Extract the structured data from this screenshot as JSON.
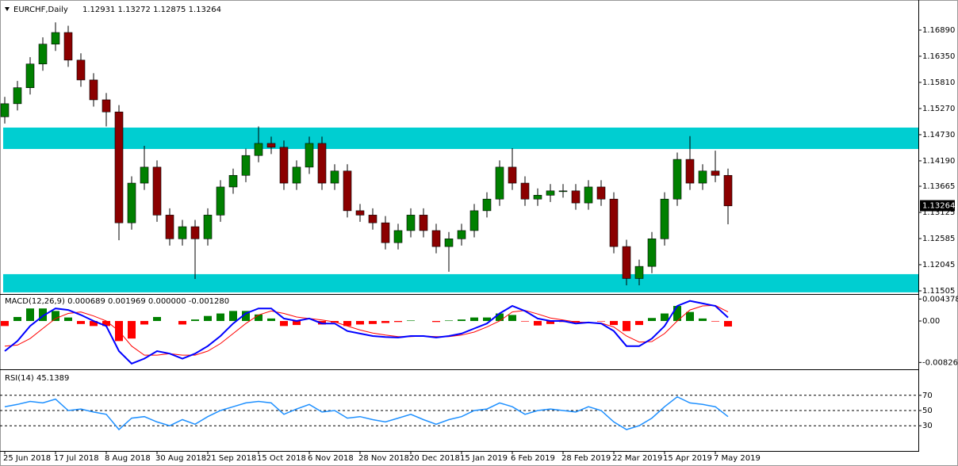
{
  "chart_data": [
    {
      "type": "candlestick",
      "title": "EURCHF,Daily",
      "subtitle": "1.12931 1.13272 1.12875 1.13264",
      "x": [
        0,
        4,
        8,
        12,
        16,
        20,
        24,
        28,
        32,
        36,
        40,
        44,
        48,
        52,
        56,
        60,
        64,
        68,
        72,
        76,
        80,
        84,
        88,
        92,
        96,
        100,
        104,
        108,
        112,
        116,
        120,
        124,
        128,
        132,
        136,
        140,
        144,
        148,
        152,
        156,
        160,
        164,
        168,
        172,
        176,
        180,
        184,
        188,
        192,
        196,
        200,
        204,
        208,
        212,
        216,
        220,
        224,
        228
      ],
      "open": [
        1.151,
        1.1537,
        1.157,
        1.1619,
        1.166,
        1.1684,
        1.1627,
        1.1586,
        1.1545,
        1.152,
        1.1291,
        1.1373,
        1.1406,
        1.1307,
        1.1258,
        1.1283,
        1.1258,
        1.1307,
        1.1365,
        1.1389,
        1.143,
        1.1455,
        1.1447,
        1.1373,
        1.1406,
        1.1455,
        1.1373,
        1.1398,
        1.1316,
        1.1307,
        1.1291,
        1.125,
        1.1275,
        1.1307,
        1.1275,
        1.1242,
        1.1258,
        1.1275,
        1.1316,
        1.134,
        1.1406,
        1.1373,
        1.134,
        1.1348,
        1.1357,
        1.1357,
        1.1332,
        1.1365,
        1.134,
        1.1242,
        1.1176,
        1.1201,
        1.1258,
        1.134,
        1.1422,
        1.1373,
        1.1398,
        1.1389
      ],
      "high": [
        1.1551,
        1.1584,
        1.1633,
        1.1674,
        1.1705,
        1.1698,
        1.1641,
        1.16,
        1.1559,
        1.1534,
        1.1387,
        1.145,
        1.142,
        1.1321,
        1.1297,
        1.1297,
        1.1321,
        1.1379,
        1.1403,
        1.1444,
        1.149,
        1.1469,
        1.1461,
        1.142,
        1.1469,
        1.1469,
        1.1412,
        1.1412,
        1.133,
        1.1321,
        1.1305,
        1.1289,
        1.1321,
        1.1321,
        1.1289,
        1.1272,
        1.1289,
        1.133,
        1.1354,
        1.142,
        1.1445,
        1.1387,
        1.1362,
        1.1371,
        1.1371,
        1.1371,
        1.1379,
        1.1379,
        1.1354,
        1.1256,
        1.1215,
        1.1272,
        1.1354,
        1.1436,
        1.147,
        1.1412,
        1.144,
        1.1403
      ],
      "low": [
        1.1496,
        1.1523,
        1.1556,
        1.1605,
        1.1646,
        1.1613,
        1.1572,
        1.1531,
        1.149,
        1.1255,
        1.1277,
        1.1359,
        1.1293,
        1.1244,
        1.1244,
        1.1175,
        1.1244,
        1.1293,
        1.1351,
        1.1375,
        1.1416,
        1.1433,
        1.1359,
        1.1359,
        1.1392,
        1.1359,
        1.1359,
        1.1302,
        1.1293,
        1.1277,
        1.1236,
        1.1236,
        1.1261,
        1.1261,
        1.1228,
        1.119,
        1.1244,
        1.1261,
        1.1302,
        1.1326,
        1.1359,
        1.1326,
        1.1326,
        1.1334,
        1.1343,
        1.1318,
        1.1318,
        1.1326,
        1.1228,
        1.1162,
        1.1162,
        1.1187,
        1.1244,
        1.1326,
        1.1359,
        1.1359,
        1.1375,
        1.1288
      ],
      "close": [
        1.1537,
        1.157,
        1.1619,
        1.166,
        1.1684,
        1.1627,
        1.1586,
        1.1545,
        1.152,
        1.1291,
        1.1373,
        1.1406,
        1.1307,
        1.1258,
        1.1283,
        1.1258,
        1.1307,
        1.1365,
        1.1389,
        1.143,
        1.1455,
        1.1447,
        1.1373,
        1.1406,
        1.1455,
        1.1373,
        1.1398,
        1.1316,
        1.1307,
        1.1291,
        1.125,
        1.1275,
        1.1307,
        1.1275,
        1.1242,
        1.1258,
        1.1275,
        1.1316,
        1.134,
        1.1406,
        1.1373,
        1.134,
        1.1348,
        1.1357,
        1.1357,
        1.1332,
        1.1365,
        1.134,
        1.1242,
        1.1176,
        1.1201,
        1.1258,
        1.134,
        1.1422,
        1.1373,
        1.1398,
        1.1389,
        1.1326
      ],
      "bull_color": "#008000",
      "bear_color": "#8b0000",
      "zones": [
        {
          "from": 1.14435,
          "to": 1.14877
        },
        {
          "from": 1.11474,
          "to": 1.1185
        }
      ],
      "zone_color": "#00ced1",
      "current_price": 1.13264,
      "xlim": [
        -1.5,
        288
      ],
      "ylim": [
        1.11456,
        1.17495
      ],
      "yticks": [
        {
          "value": 1.1689,
          "label": "1.16890"
        },
        {
          "value": 1.1635,
          "label": "1.16350"
        },
        {
          "value": 1.1581,
          "label": "1.15810"
        },
        {
          "value": 1.1527,
          "label": "1.15270"
        },
        {
          "value": 1.1473,
          "label": "1.14730"
        },
        {
          "value": 1.1419,
          "label": "1.14190"
        },
        1.13665,
        1.13125,
        1.12585,
        1.12045,
        1.11505
      ],
      "xticks": [
        {
          "value": 0,
          "label": "25 Jun 2018"
        },
        {
          "value": 16,
          "label": "17 Jul 2018"
        },
        {
          "value": 32,
          "label": "8 Aug 2018"
        },
        {
          "value": 48,
          "label": "30 Aug 2018"
        },
        {
          "value": 64,
          "label": "21 Sep 2018"
        },
        {
          "value": 80,
          "label": "15 Oct 2018"
        },
        {
          "value": 96,
          "label": "6 Nov 2018"
        },
        {
          "value": 112,
          "label": "28 Nov 2018"
        },
        {
          "value": 128,
          "label": "20 Dec 2018"
        },
        {
          "value": 144,
          "label": "15 Jan 2019"
        },
        {
          "value": 160,
          "label": "6 Feb 2019"
        },
        {
          "value": 176,
          "label": "28 Feb 2019"
        },
        {
          "value": 192,
          "label": "22 Mar 2019"
        },
        {
          "value": 208,
          "label": "15 Apr 2019"
        },
        {
          "value": 224,
          "label": "7 May 2019"
        }
      ]
    },
    {
      "type": "macd",
      "title": "MACD(12,26,9) 0.000689 0.001969 0.000000 -0.001280",
      "x": [
        0,
        4,
        8,
        12,
        16,
        20,
        24,
        28,
        32,
        36,
        40,
        44,
        48,
        52,
        56,
        60,
        64,
        68,
        72,
        76,
        80,
        84,
        88,
        92,
        96,
        100,
        104,
        108,
        112,
        116,
        120,
        124,
        128,
        132,
        136,
        140,
        144,
        148,
        152,
        156,
        160,
        164,
        168,
        172,
        176,
        180,
        184,
        188,
        192,
        196,
        200,
        204,
        208,
        212,
        216,
        220,
        224,
        228
      ],
      "main": [
        -0.006,
        -0.004,
        -0.001,
        0.001,
        0.0025,
        0.0022,
        0.0012,
        0.0,
        -0.001,
        -0.006,
        -0.0085,
        -0.0075,
        -0.006,
        -0.0065,
        -0.0075,
        -0.0065,
        -0.005,
        -0.003,
        -0.0005,
        0.0015,
        0.0025,
        0.0025,
        0.0005,
        0.0,
        0.0005,
        -0.0005,
        -0.0005,
        -0.002,
        -0.0025,
        -0.003,
        -0.0032,
        -0.0033,
        -0.003,
        -0.003,
        -0.0033,
        -0.003,
        -0.0025,
        -0.0015,
        -0.0005,
        0.0015,
        0.003,
        0.002,
        0.0005,
        0.0,
        0.0,
        -0.0005,
        -0.0003,
        -0.0005,
        -0.002,
        -0.005,
        -0.005,
        -0.0035,
        -0.001,
        0.003,
        0.004,
        0.0035,
        0.003,
        0.0007
      ],
      "signal": [
        -0.005,
        -0.0048,
        -0.0035,
        -0.0015,
        0.0005,
        0.0015,
        0.0018,
        0.001,
        0.0,
        -0.002,
        -0.005,
        -0.0068,
        -0.0068,
        -0.0065,
        -0.0068,
        -0.0068,
        -0.006,
        -0.0045,
        -0.0025,
        -0.0005,
        0.0012,
        0.002,
        0.0015,
        0.0008,
        0.0005,
        0.0002,
        -0.0002,
        -0.001,
        -0.0018,
        -0.0024,
        -0.0028,
        -0.0031,
        -0.0031,
        -0.003,
        -0.0031,
        -0.0031,
        -0.0028,
        -0.0022,
        -0.0012,
        0.0,
        0.0018,
        0.0021,
        0.0014,
        0.0006,
        0.0002,
        -0.0002,
        -0.0003,
        -0.0004,
        -0.0012,
        -0.003,
        -0.0042,
        -0.0041,
        -0.0025,
        0.0,
        0.0022,
        0.003,
        0.0031,
        0.0018
      ],
      "histogram": [
        -0.001,
        0.0008,
        0.0025,
        0.0025,
        0.002,
        0.0007,
        -0.0006,
        -0.001,
        -0.001,
        -0.004,
        -0.0035,
        -0.0007,
        0.0008,
        0.0,
        -0.0007,
        0.0003,
        0.001,
        0.0015,
        0.002,
        0.002,
        0.0013,
        0.0005,
        -0.001,
        -0.0008,
        0.0,
        -0.0007,
        -0.0003,
        -0.001,
        -0.0007,
        -0.0006,
        -0.0004,
        -0.0002,
        0.0001,
        0.0,
        -0.0002,
        0.0001,
        0.0003,
        0.0007,
        0.0007,
        0.0015,
        0.0012,
        -0.0001,
        -0.0009,
        -0.0006,
        -0.0002,
        -0.0003,
        0.0,
        -0.0001,
        -0.0008,
        -0.002,
        -0.0008,
        0.0006,
        0.0015,
        0.003,
        0.0018,
        0.0005,
        -0.0001,
        -0.0011
      ],
      "main_color": "#0000ff",
      "signal_color": "#ff0000",
      "pos_color": "#008000",
      "neg_color": "#ff0000",
      "xlim": [
        -1.5,
        288
      ],
      "ylim": [
        -0.009,
        0.00506
      ],
      "yticks": [
        0.004378,
        {
          "value": 0,
          "label": "0.00"
        },
        -0.008262
      ]
    },
    {
      "type": "line",
      "title": "RSI(14) 45.1389",
      "x": [
        0,
        4,
        8,
        12,
        16,
        20,
        24,
        28,
        32,
        36,
        40,
        44,
        48,
        52,
        56,
        60,
        64,
        68,
        72,
        76,
        80,
        84,
        88,
        92,
        96,
        100,
        104,
        108,
        112,
        116,
        120,
        124,
        128,
        132,
        136,
        140,
        144,
        148,
        152,
        156,
        160,
        164,
        168,
        172,
        176,
        180,
        184,
        188,
        192,
        196,
        200,
        204,
        208,
        212,
        216,
        220,
        224,
        228
      ],
      "values": [
        55,
        58,
        62,
        60,
        65,
        50,
        52,
        48,
        45,
        25,
        40,
        42,
        35,
        30,
        38,
        32,
        42,
        50,
        55,
        60,
        62,
        60,
        45,
        52,
        58,
        48,
        50,
        40,
        42,
        38,
        35,
        40,
        45,
        38,
        32,
        38,
        42,
        50,
        52,
        60,
        55,
        45,
        50,
        52,
        50,
        48,
        55,
        50,
        35,
        25,
        30,
        40,
        55,
        68,
        60,
        58,
        55,
        42
      ],
      "color": "#1e90ff",
      "xlim": [
        -1.5,
        288
      ],
      "ylim": [
        0,
        100
      ],
      "yticks": [
        70,
        50,
        30
      ],
      "level_lines": "dashed"
    }
  ]
}
